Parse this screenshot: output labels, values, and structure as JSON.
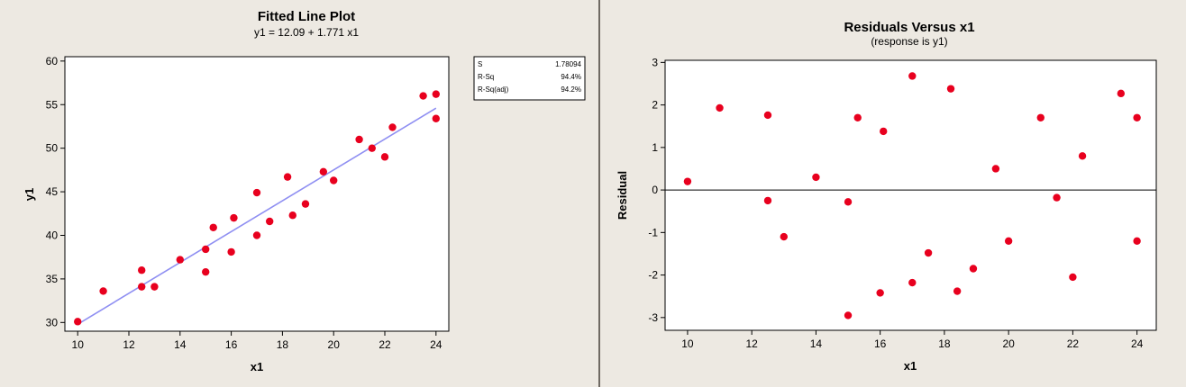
{
  "colors": {
    "background": "#ede9e2",
    "plot_area": "#ffffff",
    "point": "#e8001e",
    "fit_line": "#8f8ff2",
    "axis": "#000000"
  },
  "chart_data": [
    {
      "type": "scatter",
      "title": "Fitted Line Plot",
      "subtitle": "y1 =  12.09 + 1.771 x1",
      "xlabel": "x1",
      "ylabel": "y1",
      "xlim": [
        9.5,
        24.5
      ],
      "ylim": [
        29,
        60.5
      ],
      "xticks": [
        10,
        12,
        14,
        16,
        18,
        20,
        22,
        24
      ],
      "yticks": [
        30,
        35,
        40,
        45,
        50,
        55,
        60
      ],
      "fit_line": {
        "intercept": 12.09,
        "slope": 1.771,
        "x_range": [
          10,
          24
        ]
      },
      "stats": [
        {
          "label": "S",
          "value": "1.78094"
        },
        {
          "label": "R-Sq",
          "value": "94.4%"
        },
        {
          "label": "R-Sq(adj)",
          "value": "94.2%"
        }
      ],
      "points": [
        {
          "x": 10,
          "y": 30.1
        },
        {
          "x": 11,
          "y": 33.6
        },
        {
          "x": 12.5,
          "y": 34.1
        },
        {
          "x": 12.5,
          "y": 36.0
        },
        {
          "x": 13,
          "y": 34.1
        },
        {
          "x": 14,
          "y": 37.2
        },
        {
          "x": 15,
          "y": 35.8
        },
        {
          "x": 15,
          "y": 38.4
        },
        {
          "x": 15.3,
          "y": 40.9
        },
        {
          "x": 16,
          "y": 38.1
        },
        {
          "x": 16.1,
          "y": 42.0
        },
        {
          "x": 17,
          "y": 40.0
        },
        {
          "x": 17,
          "y": 44.9
        },
        {
          "x": 17.5,
          "y": 41.6
        },
        {
          "x": 18.2,
          "y": 46.7
        },
        {
          "x": 18.4,
          "y": 42.3
        },
        {
          "x": 18.9,
          "y": 43.6
        },
        {
          "x": 19.6,
          "y": 47.3
        },
        {
          "x": 20,
          "y": 46.3
        },
        {
          "x": 21,
          "y": 51.0
        },
        {
          "x": 21.5,
          "y": 50.0
        },
        {
          "x": 22,
          "y": 49.0
        },
        {
          "x": 22.3,
          "y": 52.4
        },
        {
          "x": 23.5,
          "y": 56.0
        },
        {
          "x": 24,
          "y": 56.2
        },
        {
          "x": 24,
          "y": 53.4
        }
      ]
    },
    {
      "type": "scatter",
      "title": "Residuals Versus x1",
      "subtitle": "(response is y1)",
      "xlabel": "x1",
      "ylabel": "Residual",
      "xlim": [
        9.3,
        24.6
      ],
      "ylim": [
        -3.3,
        3.05
      ],
      "xticks": [
        10,
        12,
        14,
        16,
        18,
        20,
        22,
        24
      ],
      "yticks": [
        -3,
        -2,
        -1,
        0,
        1,
        2,
        3
      ],
      "reference_line": 0,
      "points": [
        {
          "x": 10,
          "y": 0.2
        },
        {
          "x": 11,
          "y": 1.93
        },
        {
          "x": 12.5,
          "y": 1.76
        },
        {
          "x": 12.5,
          "y": -0.25
        },
        {
          "x": 13,
          "y": -1.1
        },
        {
          "x": 14,
          "y": 0.3
        },
        {
          "x": 15,
          "y": -0.28
        },
        {
          "x": 15,
          "y": -2.95
        },
        {
          "x": 15.3,
          "y": 1.7
        },
        {
          "x": 16,
          "y": -2.42
        },
        {
          "x": 16.1,
          "y": 1.38
        },
        {
          "x": 17,
          "y": 2.68
        },
        {
          "x": 17,
          "y": -2.18
        },
        {
          "x": 17.5,
          "y": -1.48
        },
        {
          "x": 18.2,
          "y": 2.38
        },
        {
          "x": 18.4,
          "y": -2.38
        },
        {
          "x": 18.9,
          "y": -1.85
        },
        {
          "x": 19.6,
          "y": 0.5
        },
        {
          "x": 20,
          "y": -1.2
        },
        {
          "x": 21,
          "y": 1.7
        },
        {
          "x": 21.5,
          "y": -0.18
        },
        {
          "x": 22,
          "y": -2.05
        },
        {
          "x": 22.3,
          "y": 0.8
        },
        {
          "x": 23.5,
          "y": 2.27
        },
        {
          "x": 24,
          "y": 1.7
        },
        {
          "x": 24,
          "y": -1.2
        }
      ]
    }
  ]
}
